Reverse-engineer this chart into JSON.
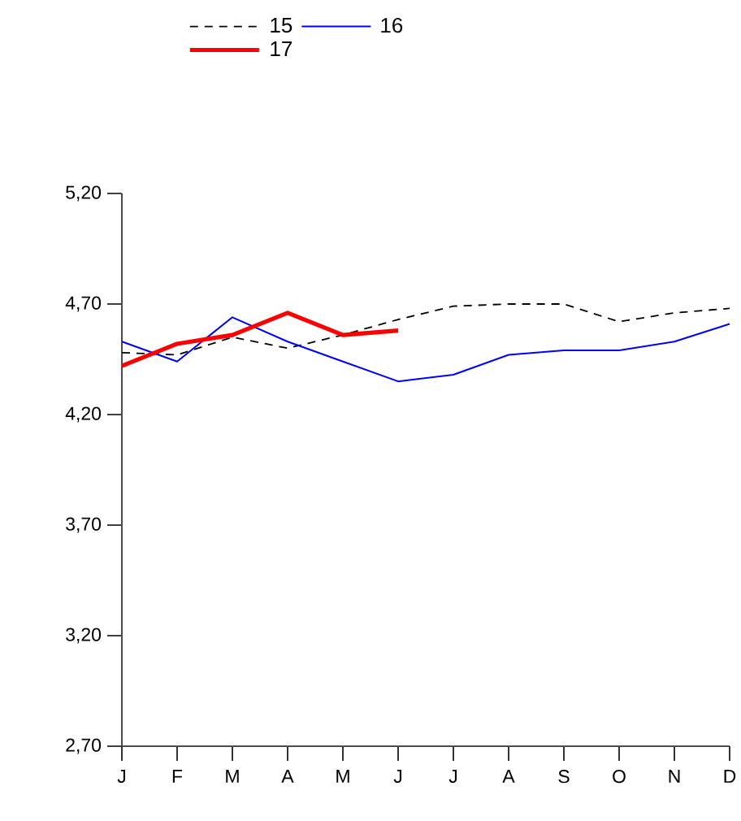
{
  "chart_data": {
    "type": "line",
    "categories": [
      "J",
      "F",
      "M",
      "A",
      "M",
      "J",
      "J",
      "A",
      "S",
      "O",
      "N",
      "D"
    ],
    "series": [
      {
        "name": "15",
        "color": "#000000",
        "line_style": "dashed",
        "values": [
          4.48,
          4.47,
          4.55,
          4.5,
          4.56,
          4.63,
          4.69,
          4.7,
          4.7,
          4.62,
          4.66,
          4.68
        ]
      },
      {
        "name": "16",
        "color": "#0000ff",
        "line_style": "solid",
        "values": [
          4.53,
          4.44,
          4.64,
          4.53,
          4.44,
          4.35,
          4.38,
          4.47,
          4.49,
          4.49,
          4.53,
          4.61
        ]
      },
      {
        "name": "17",
        "color": "#ff0000",
        "line_style": "solid",
        "values": [
          4.42,
          4.52,
          4.56,
          4.66,
          4.56,
          4.58,
          null,
          null,
          null,
          null,
          null,
          null
        ]
      }
    ],
    "ylim": [
      2.7,
      5.2
    ],
    "yticks": [
      {
        "value": 2.7,
        "label": "2,70"
      },
      {
        "value": 3.2,
        "label": "3,20"
      },
      {
        "value": 3.7,
        "label": "3,70"
      },
      {
        "value": 4.2,
        "label": "4,20"
      },
      {
        "value": 4.7,
        "label": "4,70"
      },
      {
        "value": 5.2,
        "label": "5,20"
      }
    ],
    "grid": false,
    "legend": "top",
    "marker": "none"
  }
}
